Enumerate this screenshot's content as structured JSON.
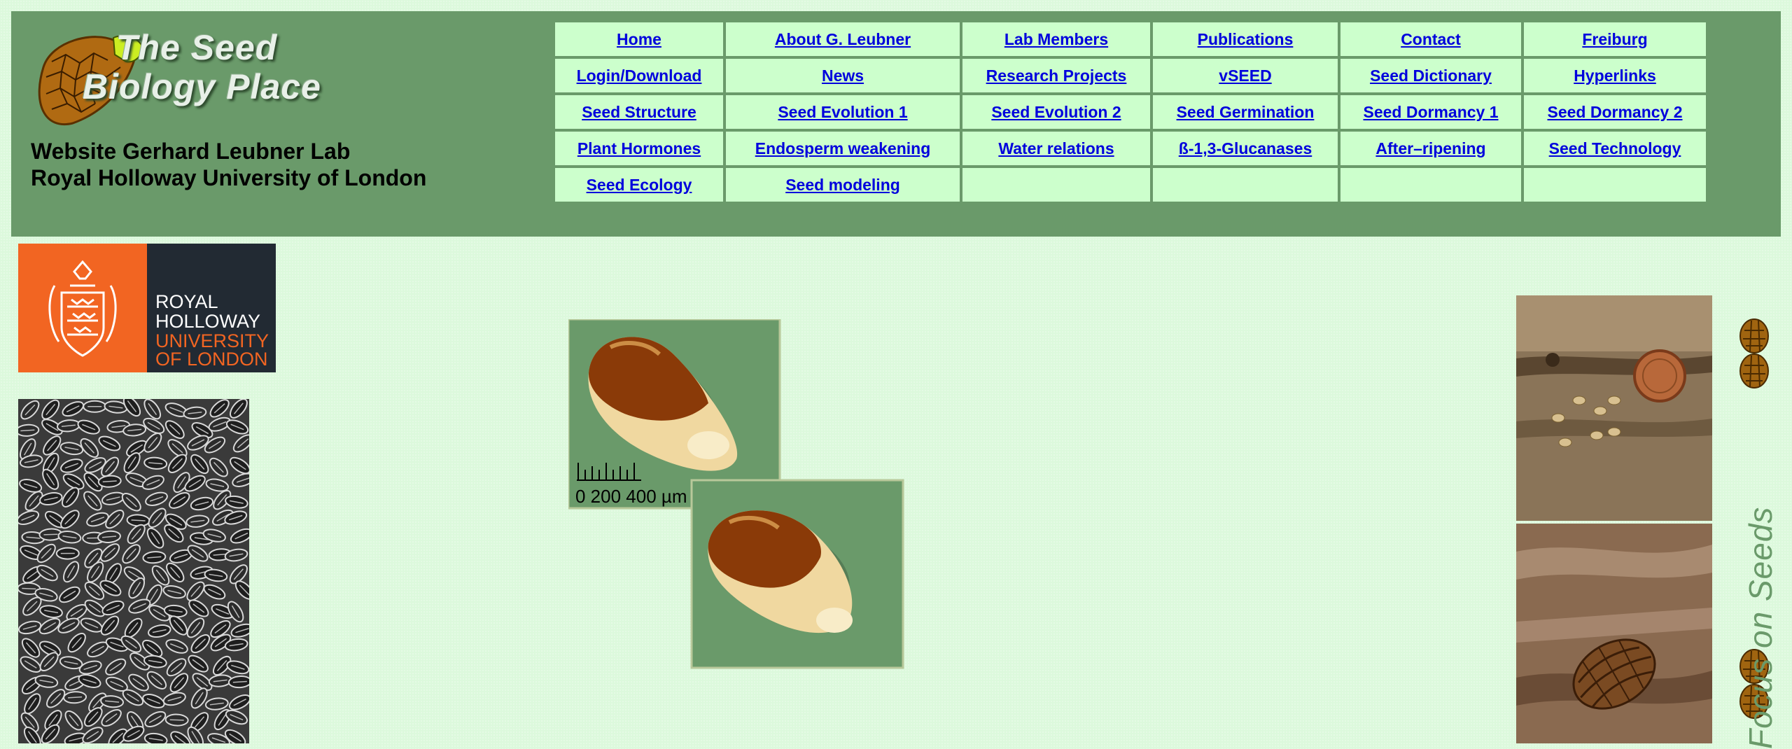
{
  "header": {
    "logo_line1": "The Seed",
    "logo_line2": "Biology Place",
    "lab_line1": "Website Gerhard Leubner Lab",
    "lab_line2": "Royal Holloway University of London"
  },
  "nav": {
    "rows": [
      [
        "Home",
        "About G. Leubner",
        "Lab Members",
        "Publications",
        "Contact",
        "Freiburg"
      ],
      [
        "Login/Download",
        "News",
        "Research Projects",
        "vSEED",
        "Seed Dictionary",
        "Hyperlinks"
      ],
      [
        "Seed Structure",
        "Seed Evolution 1",
        "Seed Evolution 2",
        "Seed Germination",
        "Seed Dormancy 1",
        "Seed Dormancy 2"
      ],
      [
        "Plant Hormones",
        "Endosperm weakening",
        "Water relations",
        "ß-1,3-Glucanases",
        "After–ripening",
        "Seed Technology"
      ],
      [
        "Seed Ecology",
        "Seed modeling",
        "",
        "",
        "",
        ""
      ]
    ]
  },
  "royal_holloway": {
    "line1": "ROYAL",
    "line2": "HOLLOWAY",
    "line3": "UNIVERSITY",
    "line4": "OF LONDON",
    "brand_orange": "#f26522",
    "brand_dark": "#222a33"
  },
  "seed_figure": {
    "scale_label": "0 200 400 µm"
  },
  "side_banner": {
    "text": "Focus on Seeds"
  },
  "colors": {
    "header_bg": "#6a9a6a",
    "nav_cell_bg": "#ccffcc",
    "link": "#0000dd",
    "page_bg": "#dcf9dc"
  }
}
